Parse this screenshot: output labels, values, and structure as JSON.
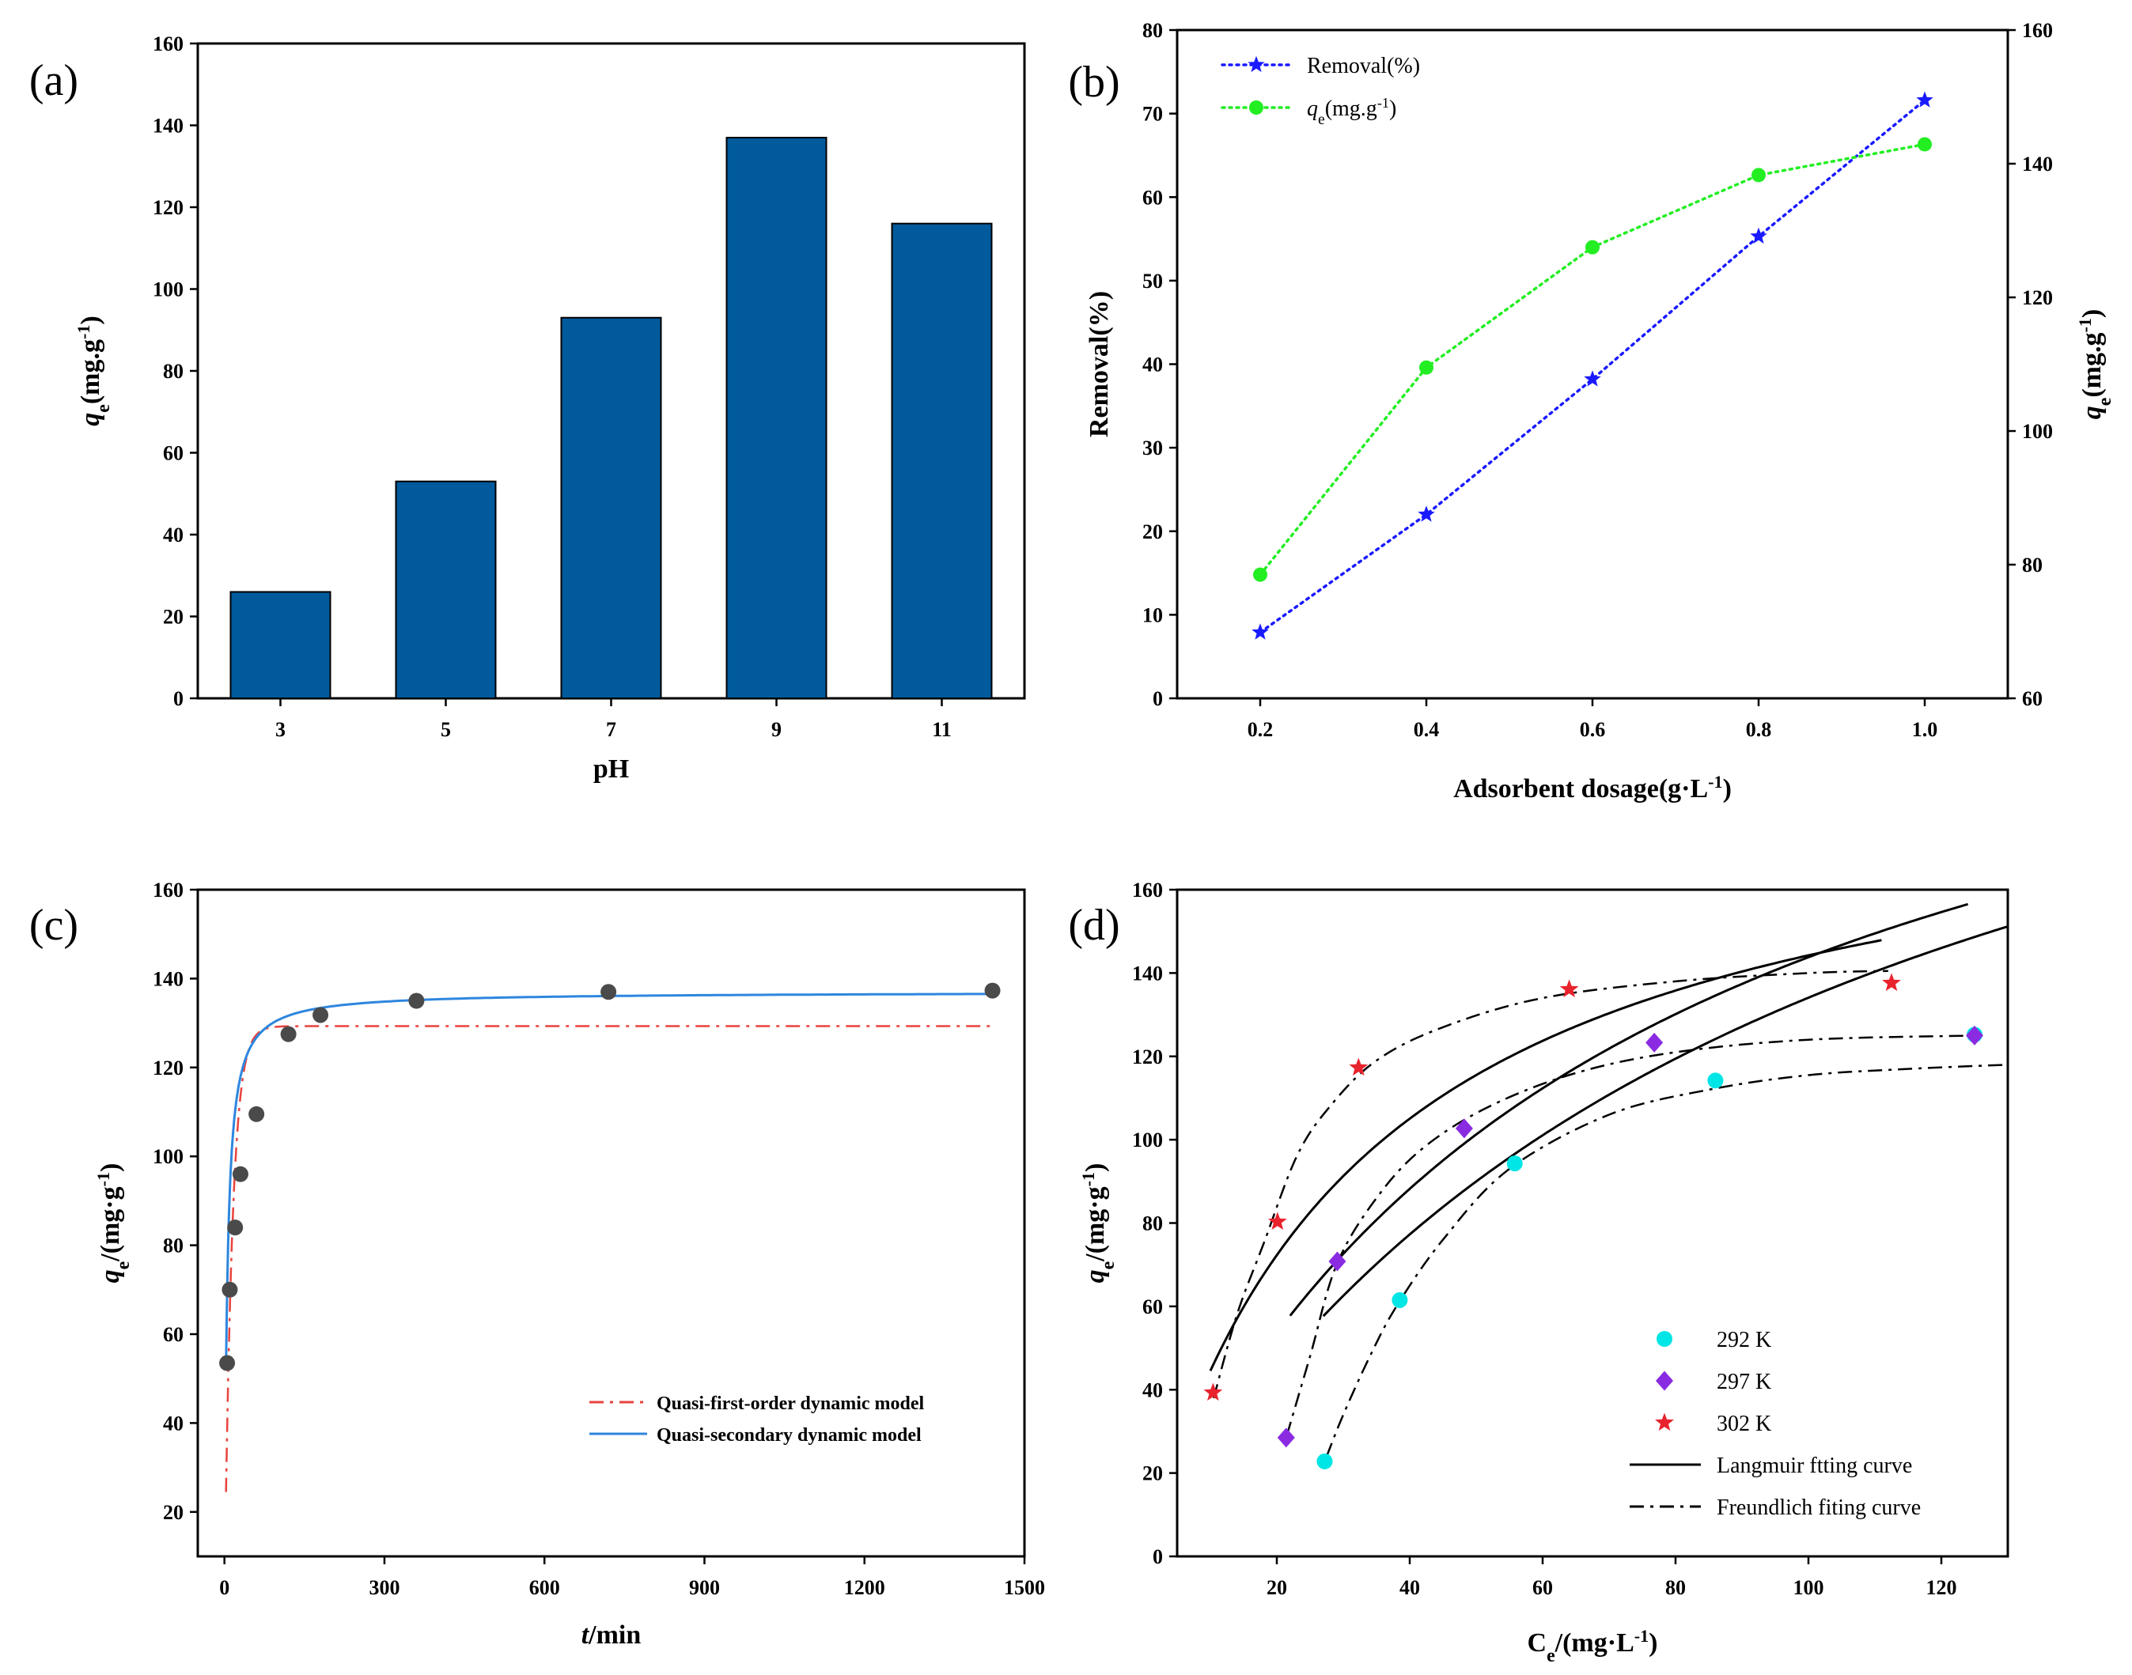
{
  "chart_data": [
    {
      "id": "a",
      "type": "bar",
      "panel_label": "(a)",
      "categories": [
        "3",
        "5",
        "7",
        "9",
        "11"
      ],
      "values": [
        26,
        53,
        93,
        137,
        116
      ],
      "xlabel": "pH",
      "ylabel": "q",
      "ylabel_sub": "e",
      "ylabel_unit": "(mg.g",
      "ylabel_sup": "-1",
      "ylabel_close": ")",
      "ylim": [
        0,
        160
      ],
      "yticks": [
        "0",
        "20",
        "40",
        "60",
        "80",
        "100",
        "120",
        "140",
        "160"
      ],
      "bar_color": "#005a9c"
    },
    {
      "id": "b",
      "type": "line",
      "panel_label": "(b)",
      "x": [
        0.2,
        0.4,
        0.6,
        0.8,
        1.0
      ],
      "xticks": [
        "0.2",
        "0.4",
        "0.6",
        "0.8",
        "1.0"
      ],
      "xlim": [
        0.1,
        1.1
      ],
      "xlabel": "Adsorbent dosage(g·L",
      "xlabel_sup": "-1",
      "xlabel_close": ")",
      "ylabel_left": "Removal(%)",
      "ylim_left": [
        0,
        80
      ],
      "yticks_left": [
        "0",
        "10",
        "20",
        "30",
        "40",
        "50",
        "60",
        "70",
        "80"
      ],
      "ylabel_right": "q",
      "ylabel_right_sub": "e",
      "ylabel_right_unit": "(mg.g",
      "ylabel_right_sup": "-1",
      "ylabel_right_close": ")",
      "ylim_right": [
        60,
        160
      ],
      "yticks_right": [
        "60",
        "80",
        "100",
        "120",
        "140",
        "160"
      ],
      "series": [
        {
          "name": "Removal(%)",
          "axis": "left",
          "values": [
            7.9,
            22.0,
            38.2,
            55.3,
            71.6
          ],
          "color": "#1a1aff",
          "marker": "star"
        },
        {
          "name": "(mg.g",
          "name_prefix": "q",
          "name_sub": "e",
          "name_sup": "-1",
          "name_close": ")",
          "axis": "right",
          "values": [
            78.5,
            109.5,
            127.5,
            138.3,
            142.9
          ],
          "color": "#22ee22",
          "marker": "circle"
        }
      ]
    },
    {
      "id": "c",
      "type": "scatter",
      "panel_label": "(c)",
      "xlabel": "t",
      "xlabel_unit": "/min",
      "ylabel": "q",
      "ylabel_sub": "e",
      "ylabel_unit": "/(mg·g",
      "ylabel_sup": "-1",
      "ylabel_close": ")",
      "xlim": [
        -50,
        1500
      ],
      "ylim": [
        10,
        160
      ],
      "xticks": [
        "0",
        "300",
        "600",
        "900",
        "1200",
        "1500"
      ],
      "yticks": [
        "20",
        "40",
        "60",
        "80",
        "100",
        "120",
        "140",
        "160"
      ],
      "points": {
        "x": [
          5,
          10,
          20,
          30,
          60,
          120,
          180,
          360,
          720,
          1440
        ],
        "y": [
          53.5,
          70,
          84,
          96,
          109.5,
          127.5,
          131.8,
          135,
          137,
          137.3
        ],
        "color": "#4a4a4a"
      },
      "models": [
        {
          "name": "Quasi-first-order dynamic model",
          "qe": 129.3,
          "k": 0.07,
          "color": "#e8433d",
          "dash": "dashdot"
        },
        {
          "name": "Quasi-secondary dynamic model",
          "qe": 137.0,
          "k": 0.0015,
          "color": "#2e86de",
          "dash": "solid"
        }
      ]
    },
    {
      "id": "d",
      "type": "scatter",
      "panel_label": "(d)",
      "xlabel": "C",
      "xlabel_sub": "e",
      "xlabel_unit": "/(mg·L",
      "xlabel_sup": "-1",
      "xlabel_close": ")",
      "ylabel": "q",
      "ylabel_sub": "e",
      "ylabel_unit": "/(mg·g",
      "ylabel_sup": "-1",
      "ylabel_close": ")",
      "xlim": [
        5,
        130
      ],
      "ylim": [
        0,
        160
      ],
      "xticks": [
        "20",
        "40",
        "60",
        "80",
        "100",
        "120"
      ],
      "yticks": [
        "0",
        "20",
        "40",
        "60",
        "80",
        "100",
        "120",
        "140",
        "160"
      ],
      "series": [
        {
          "name": "292 K",
          "marker": "circle",
          "color": "#00e5e5",
          "x": [
            27.2,
            38.5,
            55.8,
            86,
            125
          ],
          "y": [
            22.8,
            61.5,
            94.3,
            114.2,
            125.2
          ]
        },
        {
          "name": "297 K",
          "marker": "diamond",
          "color": "#8a2be2",
          "x": [
            21.4,
            29.1,
            48.2,
            76.8,
            125
          ],
          "y": [
            28.5,
            70.8,
            102.7,
            123.3,
            125
          ]
        },
        {
          "name": "302 K",
          "marker": "star",
          "color": "#e8232d",
          "x": [
            10.4,
            20.1,
            32.3,
            64,
            112.5
          ],
          "y": [
            39.3,
            80.3,
            117.3,
            136.1,
            137.6
          ]
        }
      ],
      "fits": [
        {
          "name": "Langmuir ftting curve",
          "dash": "solid",
          "curves": [
            {
              "qm": 263,
              "KL": 0.0104,
              "x0": 27,
              "x1": 130
            },
            {
              "qm": 248,
              "KL": 0.0138,
              "x0": 22,
              "x1": 124
            },
            {
              "qm": 192,
              "KL": 0.0302,
              "x0": 10,
              "x1": 111
            }
          ]
        },
        {
          "name": "Freundlich fiting curve",
          "dash": "dashdot",
          "curves": [
            {
              "pts": [
                [
                  27.5,
                  24
                ],
                [
                  30,
                  34
                ],
                [
                  34,
                  48
                ],
                [
                  38,
                  60
                ],
                [
                  45,
                  76
                ],
                [
                  55,
                  93
                ],
                [
                  70,
                  106
                ],
                [
                  85,
                  112
                ],
                [
                  100,
                  115.5
                ],
                [
                  115,
                  117
                ],
                [
                  130,
                  118
                ]
              ]
            },
            {
              "pts": [
                [
                  21.5,
                  29
                ],
                [
                  25,
                  48
                ],
                [
                  29,
                  70
                ],
                [
                  35,
                  86
                ],
                [
                  42,
                  98
                ],
                [
                  52,
                  108
                ],
                [
                  65,
                  116
                ],
                [
                  80,
                  121
                ],
                [
                  100,
                  124
                ],
                [
                  125,
                  125
                ]
              ]
            },
            {
              "pts": [
                [
                  10.5,
                  38
                ],
                [
                  14,
                  58
                ],
                [
                  18,
                  75
                ],
                [
                  23,
                  96
                ],
                [
                  28,
                  108
                ],
                [
                  35,
                  119
                ],
                [
                  45,
                  127
                ],
                [
                  60,
                  134
                ],
                [
                  80,
                  138
                ],
                [
                  100,
                  140
                ],
                [
                  112,
                  140.5
                ]
              ]
            }
          ]
        }
      ]
    }
  ]
}
